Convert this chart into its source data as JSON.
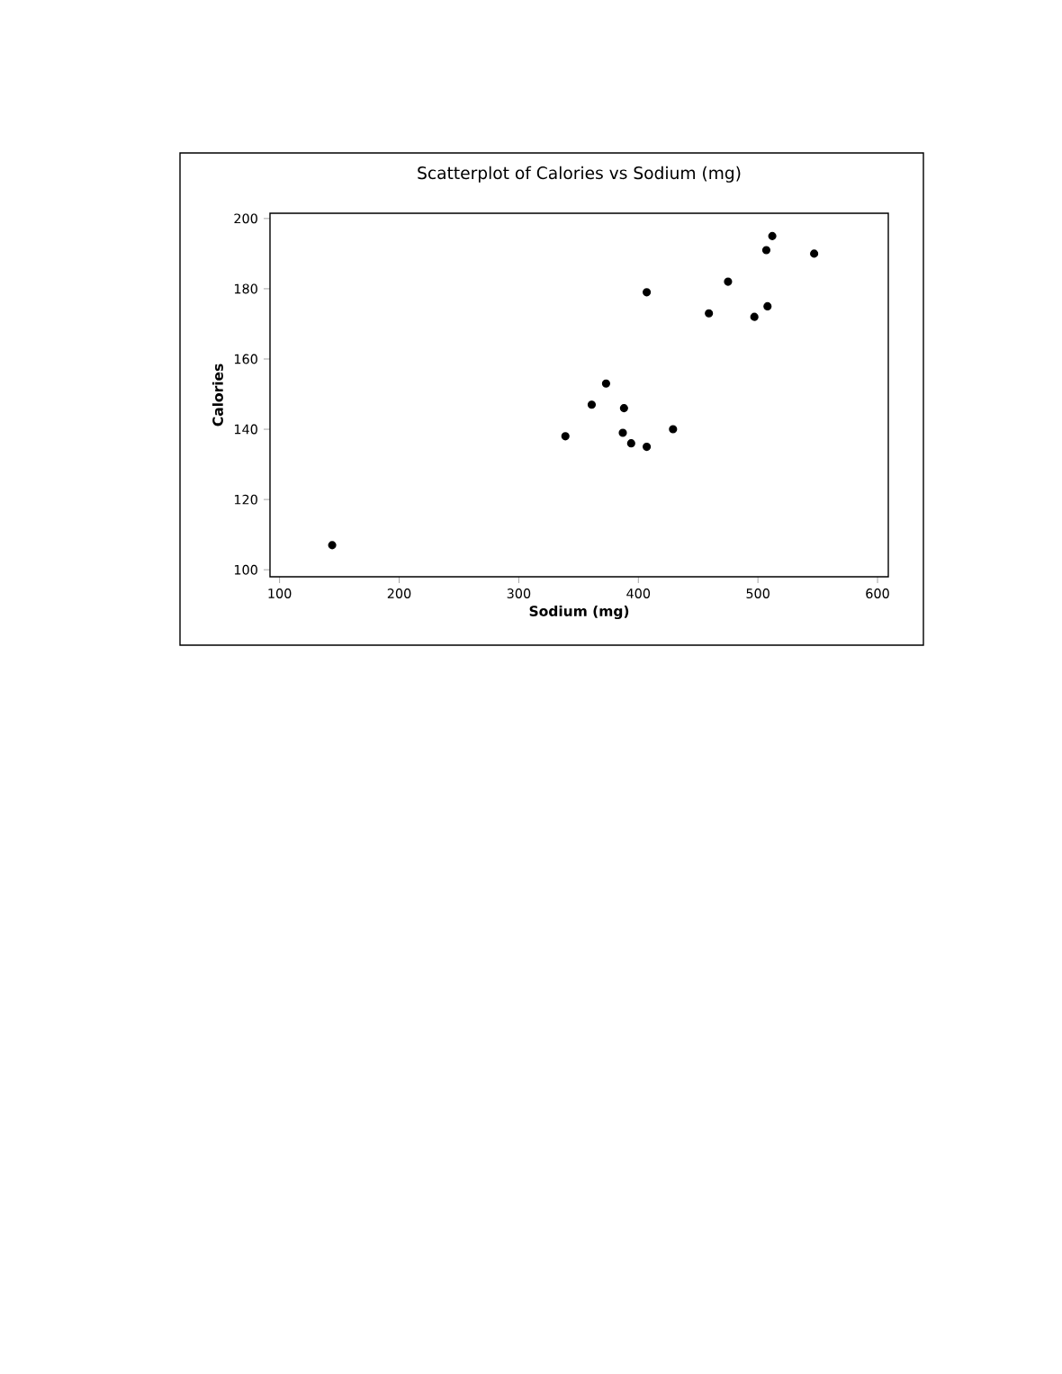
{
  "chart_data": {
    "type": "scatter",
    "title": "Scatterplot of Calories vs Sodium (mg)",
    "xlabel": "Sodium (mg)",
    "ylabel": "Calories",
    "x": [
      144,
      339,
      361,
      373,
      388,
      387,
      394,
      407,
      407,
      429,
      459,
      475,
      497,
      508,
      507,
      512,
      547
    ],
    "values": [
      107,
      138,
      147,
      153,
      146,
      139,
      136,
      135,
      179,
      140,
      173,
      182,
      172,
      175,
      191,
      195,
      190
    ],
    "color": "#000000",
    "xlim": [
      92,
      609
    ],
    "ylim": [
      98,
      201.5
    ],
    "xticks": [
      100,
      200,
      300,
      400,
      500,
      600
    ],
    "yticks": [
      100,
      120,
      140,
      160,
      180,
      200
    ],
    "grid": false
  }
}
